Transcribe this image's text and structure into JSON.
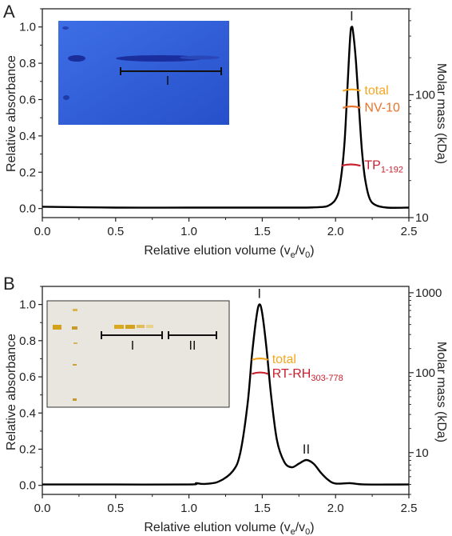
{
  "colors": {
    "total": "#F5A623",
    "component_a": "#E8732A",
    "component_b": "#C8202F",
    "curve": "#000000",
    "inset_a_bg": "#2F5FD8",
    "inset_b_bg": "#E9E6DF"
  },
  "chart_data": [
    {
      "panel": "A",
      "type": "line",
      "xlabel_main": "Relative elution volume (v",
      "xlabel_sub_e": "e",
      "xlabel_mid": "/v",
      "xlabel_sub_0": "0",
      "xlabel_end": ")",
      "ylabel": "Relative absorbance",
      "y2label": "Molar mass (kDa)",
      "xlim": [
        0.0,
        2.5
      ],
      "ylim": [
        -0.05,
        1.1
      ],
      "y2_scale": "log",
      "y2_ticks": [
        "10",
        "100"
      ],
      "xticks": [
        "0.0",
        "0.5",
        "1.0",
        "1.5",
        "2.0",
        "2.5"
      ],
      "yticks": [
        "0.0",
        "0.2",
        "0.4",
        "0.6",
        "0.8",
        "1.0"
      ],
      "series": [
        {
          "x": [
            0.0,
            0.5,
            1.0,
            1.5,
            1.8,
            1.9,
            1.95,
            2.0,
            2.03,
            2.06,
            2.08,
            2.1,
            2.11,
            2.12,
            2.14,
            2.16,
            2.18,
            2.2,
            2.23,
            2.27,
            2.35,
            2.5
          ],
          "y": [
            0.01,
            0.005,
            0.005,
            0.005,
            0.005,
            0.008,
            0.015,
            0.05,
            0.13,
            0.35,
            0.65,
            0.95,
            1.0,
            0.97,
            0.8,
            0.55,
            0.32,
            0.17,
            0.06,
            0.02,
            0.005,
            0.005
          ]
        }
      ],
      "peak_labels": [
        {
          "text": "I",
          "x": 2.11
        }
      ],
      "annotations": [
        {
          "label": "total",
          "x_range": [
            2.05,
            2.17
          ],
          "molar_mass_kDa": 110,
          "color_key": "total"
        },
        {
          "label": "NV-10",
          "x_range": [
            2.05,
            2.17
          ],
          "molar_mass_kDa": 80,
          "color_key": "component_a"
        },
        {
          "label": "TP",
          "label_sub": "1-192",
          "x_range": [
            2.04,
            2.17
          ],
          "molar_mass_kDa": 27,
          "color_key": "component_b"
        }
      ],
      "inset": {
        "label": "I",
        "gel": "blue-stained gel"
      }
    },
    {
      "panel": "B",
      "type": "line",
      "xlabel_main": "Relative elution volume (v",
      "xlabel_sub_e": "e",
      "xlabel_mid": "/v",
      "xlabel_sub_0": "0",
      "xlabel_end": ")",
      "ylabel": "Relative absorbance",
      "y2label": "Molar mass (kDa)",
      "xlim": [
        0.0,
        2.5
      ],
      "ylim": [
        -0.05,
        1.1
      ],
      "y2_scale": "log",
      "y2_ticks": [
        "10",
        "100",
        "1000"
      ],
      "xticks": [
        "0.0",
        "0.5",
        "1.0",
        "1.5",
        "2.0",
        "2.5"
      ],
      "yticks": [
        "0.0",
        "0.2",
        "0.4",
        "0.6",
        "0.8",
        "1.0"
      ],
      "series": [
        {
          "x": [
            0.0,
            0.5,
            1.0,
            1.05,
            1.1,
            1.2,
            1.3,
            1.35,
            1.4,
            1.43,
            1.46,
            1.48,
            1.5,
            1.53,
            1.56,
            1.6,
            1.65,
            1.7,
            1.75,
            1.8,
            1.85,
            1.9,
            1.95,
            2.0,
            2.1,
            2.2,
            2.5
          ],
          "y": [
            0.005,
            0.005,
            0.005,
            0.012,
            0.008,
            0.02,
            0.08,
            0.18,
            0.45,
            0.72,
            0.93,
            1.0,
            0.95,
            0.75,
            0.5,
            0.25,
            0.13,
            0.1,
            0.12,
            0.14,
            0.12,
            0.07,
            0.03,
            0.01,
            0.012,
            0.005,
            0.005
          ]
        }
      ],
      "peak_labels": [
        {
          "text": "I",
          "x": 1.48
        },
        {
          "text": "II",
          "x": 1.8
        }
      ],
      "annotations": [
        {
          "label": "total",
          "x_range": [
            1.43,
            1.54
          ],
          "molar_mass_kDa": 150,
          "color_key": "total"
        },
        {
          "label": "RT-RH",
          "label_sub": "303-778",
          "x_range": [
            1.43,
            1.54
          ],
          "molar_mass_kDa": 100,
          "color_key": "component_b"
        }
      ],
      "inset": {
        "labels": [
          "I",
          "II"
        ],
        "gel": "silver-stained gel"
      }
    }
  ]
}
